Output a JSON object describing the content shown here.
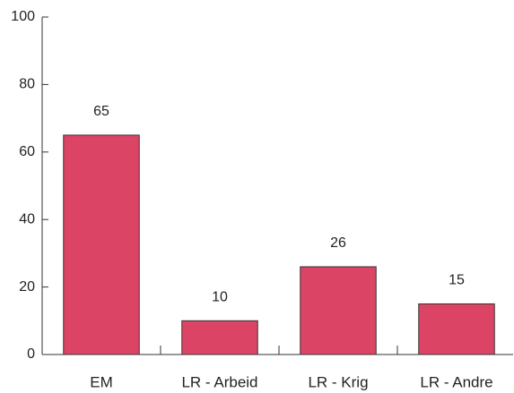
{
  "chart_data": {
    "type": "bar",
    "categories": [
      "EM",
      "LR - Arbeid",
      "LR - Krig",
      "LR - Andre"
    ],
    "values": [
      65,
      10,
      26,
      15
    ],
    "color": "#dc4466",
    "ylim": [
      0,
      100
    ],
    "yticks": [
      0,
      20,
      40,
      60,
      80,
      100
    ],
    "grid": false
  }
}
